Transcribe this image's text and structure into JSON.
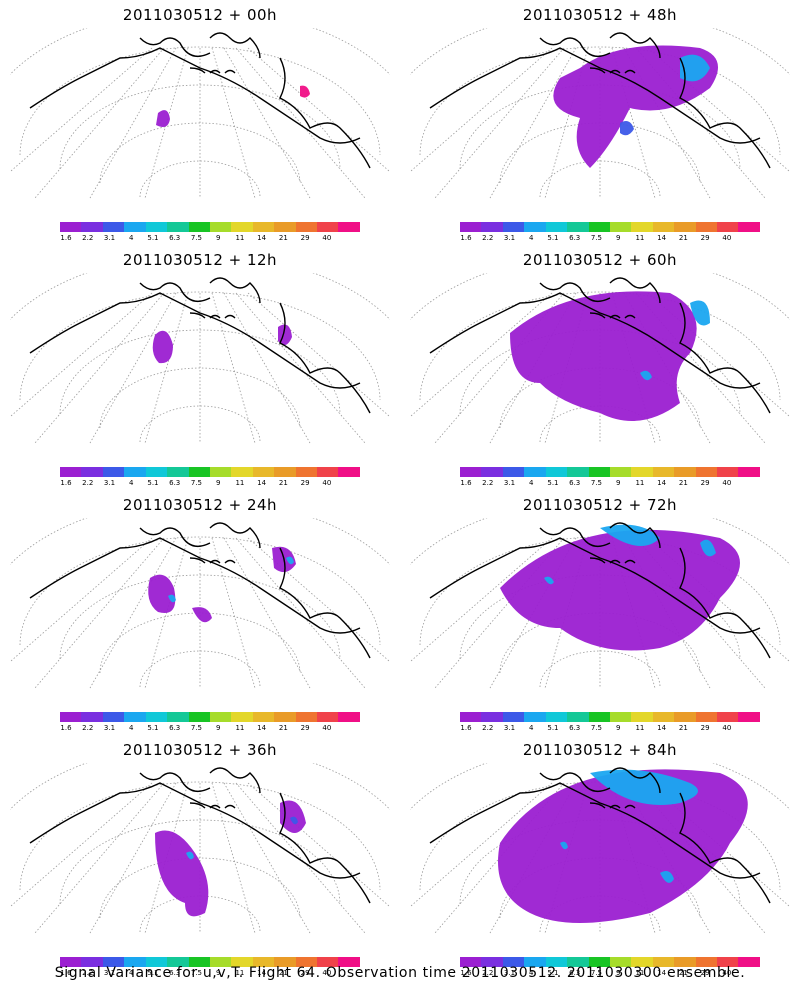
{
  "footer": "Signal Variance for u,v,T. Flight 64. Observation time 2011030512. 2011030300 ensemble.",
  "colorbar": {
    "colors": [
      "#9b1fd1",
      "#7a2fe0",
      "#3c59e8",
      "#1aa7f0",
      "#10c8d8",
      "#14c897",
      "#18c424",
      "#a6dc2a",
      "#e3d72a",
      "#e8b82a",
      "#e99b28",
      "#ef7430",
      "#f0424a",
      "#f00f86"
    ],
    "labels": [
      "1.6",
      "2.2",
      "3.1",
      "4",
      "5.1",
      "6.3",
      "7.5",
      "9",
      "11",
      "14",
      "21",
      "29",
      "40"
    ]
  },
  "panels": [
    {
      "title": "2011030512 + 00h"
    },
    {
      "title": "2011030512 + 48h"
    },
    {
      "title": "2011030512 + 12h"
    },
    {
      "title": "2011030512 + 60h"
    },
    {
      "title": "2011030512 + 24h"
    },
    {
      "title": "2011030512 + 72h"
    },
    {
      "title": "2011030512 + 36h"
    },
    {
      "title": "2011030512 + 84h"
    }
  ]
}
